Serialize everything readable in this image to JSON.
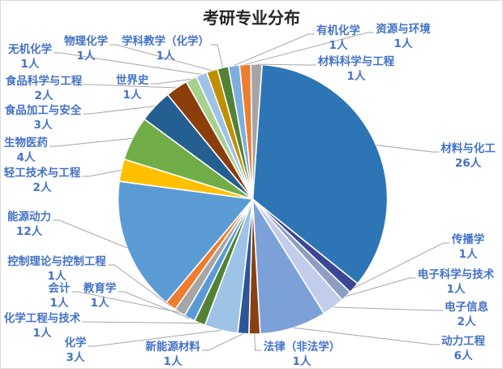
{
  "chart_data": {
    "type": "pie",
    "title": "考研专业分布",
    "unit": "人",
    "total": 75,
    "legend": "none",
    "start_angle_deg": 4,
    "label_color": "#4472C4",
    "leader_line_color": "#A6A6A6",
    "series": [
      {
        "name": "材料与化工",
        "value": 26,
        "color": "#2E75B6"
      },
      {
        "name": "传播学",
        "value": 1,
        "color": "#3B4794"
      },
      {
        "name": "电子科学与技术",
        "value": 1,
        "color": "#8D9DC3"
      },
      {
        "name": "电子信息",
        "value": 2,
        "color": "#C1CDEA"
      },
      {
        "name": "动力工程",
        "value": 6,
        "color": "#7CA1D9"
      },
      {
        "name": "法律（非法学）",
        "value": 1,
        "color": "#8A4111"
      },
      {
        "name": "新能源材料",
        "value": 1,
        "color": "#2E5697"
      },
      {
        "name": "化学",
        "value": 3,
        "color": "#9DC3E6"
      },
      {
        "name": "化学工程与技术",
        "value": 1,
        "color": "#548235"
      },
      {
        "name": "教育学",
        "value": 1,
        "color": "#5B9BD5"
      },
      {
        "name": "会计",
        "value": 1,
        "color": "#A6A6A6"
      },
      {
        "name": "控制理论与控制工程",
        "value": 1,
        "color": "#ED7D31"
      },
      {
        "name": "能源动力",
        "value": 12,
        "color": "#5B9BD5"
      },
      {
        "name": "轻工技术与工程",
        "value": 2,
        "color": "#FFC000"
      },
      {
        "name": "生物医药",
        "value": 4,
        "color": "#70AD47"
      },
      {
        "name": "食品加工与安全",
        "value": 3,
        "color": "#255E91"
      },
      {
        "name": "食品科学与工程",
        "value": 2,
        "color": "#8A3E0C"
      },
      {
        "name": "世界史",
        "value": 1,
        "color": "#A9D18E"
      },
      {
        "name": "无机化学",
        "value": 1,
        "color": "#9DC3E6"
      },
      {
        "name": "物理化学",
        "value": 1,
        "color": "#BF8F00"
      },
      {
        "name": "学科教学（化学）",
        "value": 1,
        "color": "#538135"
      },
      {
        "name": "有机化学",
        "value": 1,
        "color": "#7CAFDD"
      },
      {
        "name": "资源与环境",
        "value": 1,
        "color": "#ED7D31"
      },
      {
        "name": "材料科学与工程",
        "value": 1,
        "color": "#A5A5A5"
      }
    ]
  }
}
